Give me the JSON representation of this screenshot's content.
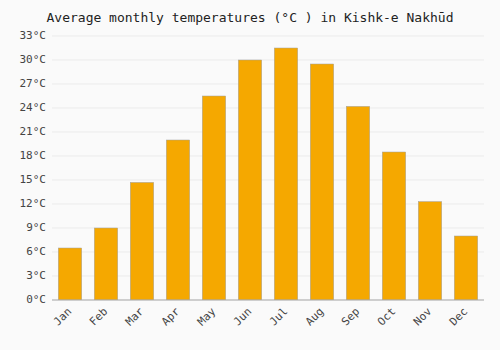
{
  "chart_data": {
    "type": "bar",
    "title": "Average monthly temperatures (°C ) in Kishk-e Nakhūd",
    "categories": [
      "Jan",
      "Feb",
      "Mar",
      "Apr",
      "May",
      "Jun",
      "Jul",
      "Aug",
      "Sep",
      "Oct",
      "Nov",
      "Dec"
    ],
    "values": [
      6.5,
      9.0,
      14.7,
      20.0,
      25.5,
      30.0,
      31.5,
      29.5,
      24.2,
      18.5,
      12.3,
      8.0
    ],
    "color": "#F5A800",
    "ylim": [
      0,
      33
    ],
    "yticks": [
      {
        "value": 0,
        "label": "0°C"
      },
      {
        "value": 3,
        "label": "3°C"
      },
      {
        "value": 6,
        "label": "6°C"
      },
      {
        "value": 9,
        "label": "9°C"
      },
      {
        "value": 12,
        "label": "12°C"
      },
      {
        "value": 15,
        "label": "15°C"
      },
      {
        "value": 18,
        "label": "18°C"
      },
      {
        "value": 21,
        "label": "21°C"
      },
      {
        "value": 24,
        "label": "24°C"
      },
      {
        "value": 27,
        "label": "27°C"
      },
      {
        "value": 30,
        "label": "30°C"
      },
      {
        "value": 33,
        "label": "33°C"
      }
    ],
    "grid": true
  }
}
